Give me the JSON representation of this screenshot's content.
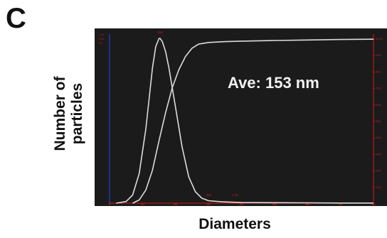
{
  "panel_letter": "C",
  "chart_data": {
    "type": "line",
    "title": "",
    "xlabel": "Diameters",
    "ylabel_lines": [
      "Number of",
      "particles"
    ],
    "annotation": "Ave: 153 nm",
    "peak_label": "153",
    "minor_labels": [
      "300",
      "1.32"
    ],
    "xlim": [
      0,
      800
    ],
    "x_ticks": [
      "0",
      "100",
      "200",
      "300",
      "400",
      "500",
      "600",
      "700",
      "800"
    ],
    "left_ticks": [
      "1.00",
      "0.50",
      "0.0"
    ],
    "right_ticks": [
      "100%",
      "90%",
      "80%",
      "70%",
      "60%",
      "50%",
      "40%",
      "30%",
      "20%",
      "10%"
    ],
    "series": [
      {
        "x": [
          20,
          50,
          70,
          90,
          110,
          130,
          140,
          150,
          153,
          160,
          170,
          180,
          200,
          220,
          240,
          260,
          280,
          300,
          340,
          400,
          500,
          600,
          700,
          800
        ],
        "y": [
          0,
          0.01,
          0.05,
          0.18,
          0.45,
          0.82,
          0.95,
          1.0,
          1.0,
          0.98,
          0.92,
          0.82,
          0.58,
          0.34,
          0.16,
          0.07,
          0.03,
          0.015,
          0.008,
          0.004,
          0.003,
          0.002,
          0.001,
          0.001
        ]
      },
      {
        "x": [
          70,
          90,
          110,
          130,
          150,
          170,
          190,
          210,
          230,
          250,
          270,
          300,
          350,
          400,
          500,
          600,
          700,
          800
        ],
        "y": [
          0,
          0.02,
          0.08,
          0.2,
          0.38,
          0.55,
          0.7,
          0.81,
          0.89,
          0.94,
          0.965,
          0.975,
          0.98,
          0.983,
          0.987,
          0.99,
          0.993,
          0.995
        ]
      }
    ],
    "colors": {
      "background": "#1b1b1b",
      "curve": "#dcdcdc",
      "left_axis": "#2244ff",
      "right_axis": "#cc1a1a"
    }
  }
}
